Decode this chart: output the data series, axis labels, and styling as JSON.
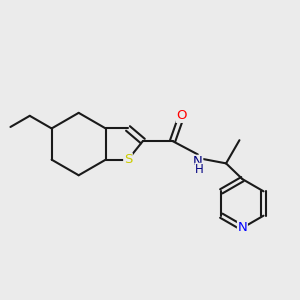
{
  "background_color": "#ebebeb",
  "bond_color": "#1a1a1a",
  "atom_colors": {
    "S": "#cccc00",
    "O": "#ff0000",
    "N": "#000080",
    "H": "#1a1a1a",
    "N_pyridine": "#0000ff"
  },
  "figsize": [
    3.0,
    3.0
  ],
  "dpi": 100
}
